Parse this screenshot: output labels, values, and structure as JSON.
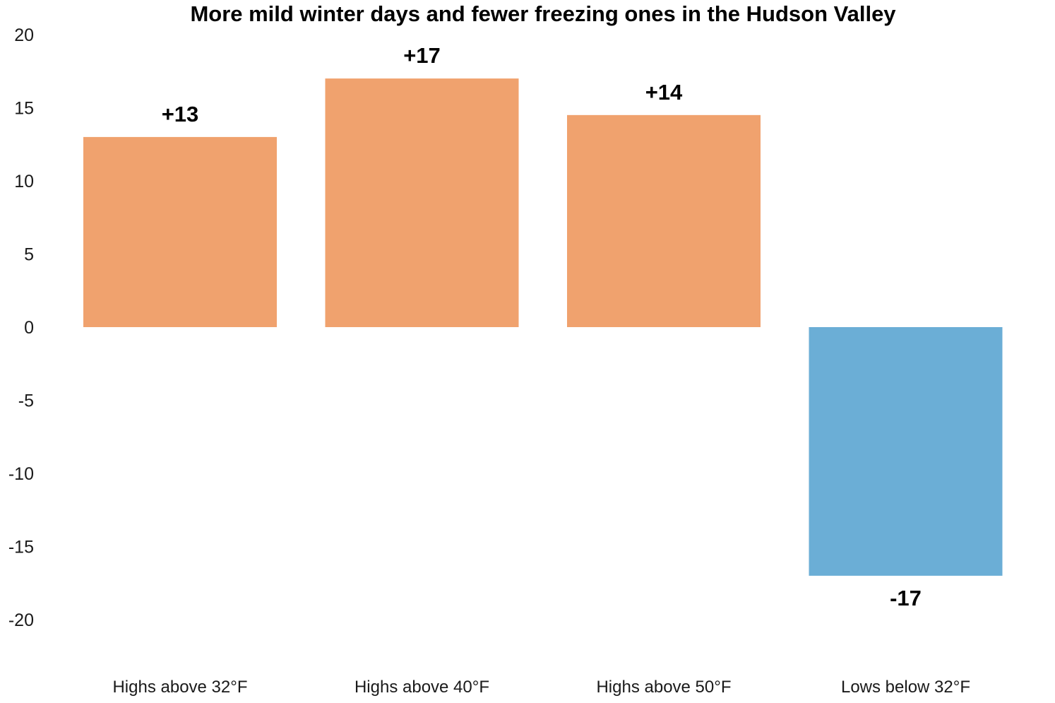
{
  "chart_data": {
    "type": "bar",
    "title": "More mild winter days and fewer freezing ones in the Hudson Valley",
    "categories": [
      "Highs above 32°F",
      "Highs above 40°F",
      "Highs above 50°F",
      "Lows below 32°F"
    ],
    "values": [
      13,
      17,
      14.5,
      -17
    ],
    "data_labels": [
      "+13",
      "+17",
      "+14",
      "-17"
    ],
    "yticks": [
      20,
      15,
      10,
      5,
      0,
      -5,
      -10,
      -15,
      -20
    ],
    "ylim": [
      -20,
      20
    ],
    "grid": false,
    "legend": "none",
    "colors": {
      "positive": "#f0a26e",
      "negative": "#6baed6"
    }
  }
}
